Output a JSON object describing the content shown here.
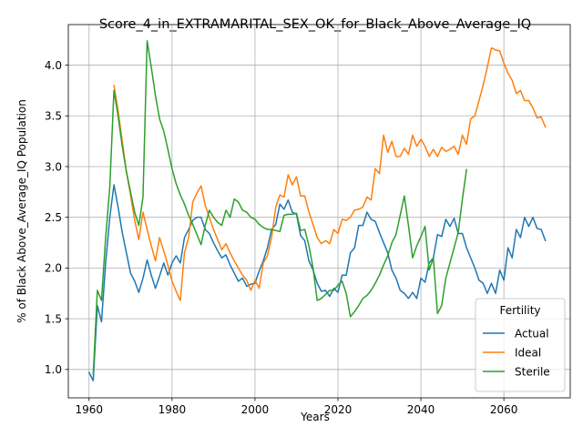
{
  "chart_data": {
    "type": "line",
    "title": "Score_4_in_EXTRAMARITAL_SEX_OK_for_Black_Above_Average_IQ",
    "xlabel": "Years",
    "ylabel": "% of Black Above_Average_IQ Population",
    "xlim": [
      1955,
      2076
    ],
    "ylim": [
      0.72,
      4.4
    ],
    "xticks": [
      1960,
      1980,
      2000,
      2020,
      2040,
      2060
    ],
    "yticks": [
      1.0,
      1.5,
      2.0,
      2.5,
      3.0,
      3.5,
      4.0
    ],
    "ytick_labels": [
      "1.0",
      "1.5",
      "2.0",
      "2.5",
      "3.0",
      "3.5",
      "4.0"
    ],
    "grid": true,
    "legend": {
      "title": "Fertility",
      "position": "lower-right"
    },
    "series": [
      {
        "name": "Actual",
        "color": "#1f77b4",
        "points": [
          [
            1960,
            0.97
          ],
          [
            1961,
            0.89
          ],
          [
            1962,
            1.63
          ],
          [
            1963,
            1.47
          ],
          [
            1964,
            2.05
          ],
          [
            1965,
            2.5
          ],
          [
            1966,
            2.82
          ],
          [
            1967,
            2.6
          ],
          [
            1968,
            2.35
          ],
          [
            1969,
            2.15
          ],
          [
            1970,
            1.95
          ],
          [
            1971,
            1.87
          ],
          [
            1972,
            1.76
          ],
          [
            1973,
            1.9
          ],
          [
            1974,
            2.08
          ],
          [
            1975,
            1.93
          ],
          [
            1976,
            1.8
          ],
          [
            1977,
            1.92
          ],
          [
            1978,
            2.05
          ],
          [
            1979,
            1.93
          ],
          [
            1980,
            2.05
          ],
          [
            1981,
            2.12
          ],
          [
            1982,
            2.05
          ],
          [
            1983,
            2.3
          ],
          [
            1984,
            2.38
          ],
          [
            1985,
            2.47
          ],
          [
            1986,
            2.5
          ],
          [
            1987,
            2.5
          ],
          [
            1988,
            2.38
          ],
          [
            1989,
            2.34
          ],
          [
            1990,
            2.25
          ],
          [
            1991,
            2.17
          ],
          [
            1992,
            2.1
          ],
          [
            1993,
            2.13
          ],
          [
            1994,
            2.03
          ],
          [
            1995,
            1.95
          ],
          [
            1996,
            1.87
          ],
          [
            1997,
            1.9
          ],
          [
            1998,
            1.82
          ],
          [
            1999,
            1.84
          ],
          [
            2000,
            1.85
          ],
          [
            2001,
            1.97
          ],
          [
            2002,
            2.07
          ],
          [
            2003,
            2.2
          ],
          [
            2004,
            2.38
          ],
          [
            2005,
            2.43
          ],
          [
            2006,
            2.63
          ],
          [
            2007,
            2.58
          ],
          [
            2008,
            2.67
          ],
          [
            2009,
            2.55
          ],
          [
            2010,
            2.53
          ],
          [
            2011,
            2.32
          ],
          [
            2012,
            2.27
          ],
          [
            2013,
            2.07
          ],
          [
            2014,
            1.98
          ],
          [
            2015,
            1.85
          ],
          [
            2016,
            1.77
          ],
          [
            2017,
            1.78
          ],
          [
            2018,
            1.72
          ],
          [
            2019,
            1.8
          ],
          [
            2020,
            1.76
          ],
          [
            2021,
            1.93
          ],
          [
            2022,
            1.93
          ],
          [
            2023,
            2.15
          ],
          [
            2024,
            2.2
          ],
          [
            2025,
            2.42
          ],
          [
            2026,
            2.42
          ],
          [
            2027,
            2.55
          ],
          [
            2028,
            2.48
          ],
          [
            2029,
            2.46
          ],
          [
            2030,
            2.35
          ],
          [
            2031,
            2.25
          ],
          [
            2032,
            2.15
          ],
          [
            2033,
            1.98
          ],
          [
            2034,
            1.9
          ],
          [
            2035,
            1.78
          ],
          [
            2036,
            1.75
          ],
          [
            2037,
            1.7
          ],
          [
            2038,
            1.76
          ],
          [
            2039,
            1.7
          ],
          [
            2040,
            1.9
          ],
          [
            2041,
            1.86
          ],
          [
            2042,
            2.05
          ],
          [
            2043,
            2.1
          ],
          [
            2044,
            2.33
          ],
          [
            2045,
            2.31
          ],
          [
            2046,
            2.48
          ],
          [
            2047,
            2.41
          ],
          [
            2048,
            2.49
          ],
          [
            2049,
            2.34
          ],
          [
            2050,
            2.34
          ],
          [
            2051,
            2.2
          ],
          [
            2052,
            2.1
          ],
          [
            2053,
            2.0
          ],
          [
            2054,
            1.88
          ],
          [
            2055,
            1.85
          ],
          [
            2056,
            1.75
          ],
          [
            2057,
            1.85
          ],
          [
            2058,
            1.75
          ],
          [
            2059,
            1.98
          ],
          [
            2060,
            1.88
          ],
          [
            2061,
            2.2
          ],
          [
            2062,
            2.1
          ],
          [
            2063,
            2.38
          ],
          [
            2064,
            2.3
          ],
          [
            2065,
            2.5
          ],
          [
            2066,
            2.41
          ],
          [
            2067,
            2.5
          ],
          [
            2068,
            2.39
          ],
          [
            2069,
            2.38
          ],
          [
            2070,
            2.27
          ]
        ]
      },
      {
        "name": "Ideal",
        "color": "#ff7f0e",
        "points": [
          [
            1966,
            3.8
          ],
          [
            1967,
            3.55
          ],
          [
            1968,
            3.25
          ],
          [
            1969,
            2.95
          ],
          [
            1970,
            2.72
          ],
          [
            1971,
            2.47
          ],
          [
            1972,
            2.28
          ],
          [
            1973,
            2.55
          ],
          [
            1974,
            2.38
          ],
          [
            1975,
            2.22
          ],
          [
            1976,
            2.07
          ],
          [
            1977,
            2.3
          ],
          [
            1978,
            2.17
          ],
          [
            1979,
            2.03
          ],
          [
            1980,
            1.87
          ],
          [
            1981,
            1.77
          ],
          [
            1982,
            1.68
          ],
          [
            1983,
            2.15
          ],
          [
            1984,
            2.3
          ],
          [
            1985,
            2.65
          ],
          [
            1986,
            2.74
          ],
          [
            1987,
            2.81
          ],
          [
            1988,
            2.62
          ],
          [
            1989,
            2.5
          ],
          [
            1990,
            2.38
          ],
          [
            1991,
            2.28
          ],
          [
            1992,
            2.18
          ],
          [
            1993,
            2.24
          ],
          [
            1994,
            2.15
          ],
          [
            1995,
            2.07
          ],
          [
            1996,
            2.0
          ],
          [
            1997,
            1.93
          ],
          [
            1998,
            1.88
          ],
          [
            1999,
            1.78
          ],
          [
            2000,
            1.88
          ],
          [
            2001,
            1.8
          ],
          [
            2002,
            2.05
          ],
          [
            2003,
            2.12
          ],
          [
            2004,
            2.3
          ],
          [
            2005,
            2.6
          ],
          [
            2006,
            2.72
          ],
          [
            2007,
            2.7
          ],
          [
            2008,
            2.92
          ],
          [
            2009,
            2.82
          ],
          [
            2010,
            2.9
          ],
          [
            2011,
            2.71
          ],
          [
            2012,
            2.71
          ],
          [
            2013,
            2.55
          ],
          [
            2014,
            2.43
          ],
          [
            2015,
            2.3
          ],
          [
            2016,
            2.24
          ],
          [
            2017,
            2.27
          ],
          [
            2018,
            2.24
          ],
          [
            2019,
            2.38
          ],
          [
            2020,
            2.34
          ],
          [
            2021,
            2.48
          ],
          [
            2022,
            2.47
          ],
          [
            2023,
            2.5
          ],
          [
            2024,
            2.57
          ],
          [
            2025,
            2.58
          ],
          [
            2026,
            2.6
          ],
          [
            2027,
            2.7
          ],
          [
            2028,
            2.67
          ],
          [
            2029,
            2.98
          ],
          [
            2030,
            2.93
          ],
          [
            2031,
            3.31
          ],
          [
            2032,
            3.14
          ],
          [
            2033,
            3.25
          ],
          [
            2034,
            3.1
          ],
          [
            2035,
            3.1
          ],
          [
            2036,
            3.18
          ],
          [
            2037,
            3.12
          ],
          [
            2038,
            3.31
          ],
          [
            2039,
            3.2
          ],
          [
            2040,
            3.27
          ],
          [
            2041,
            3.2
          ],
          [
            2042,
            3.1
          ],
          [
            2043,
            3.17
          ],
          [
            2044,
            3.1
          ],
          [
            2045,
            3.19
          ],
          [
            2046,
            3.15
          ],
          [
            2047,
            3.17
          ],
          [
            2048,
            3.2
          ],
          [
            2049,
            3.12
          ],
          [
            2050,
            3.31
          ],
          [
            2051,
            3.22
          ],
          [
            2052,
            3.47
          ],
          [
            2053,
            3.5
          ],
          [
            2054,
            3.65
          ],
          [
            2055,
            3.8
          ],
          [
            2056,
            3.98
          ],
          [
            2057,
            4.17
          ],
          [
            2058,
            4.15
          ],
          [
            2059,
            4.14
          ],
          [
            2060,
            4.02
          ],
          [
            2061,
            3.92
          ],
          [
            2062,
            3.85
          ],
          [
            2063,
            3.72
          ],
          [
            2064,
            3.75
          ],
          [
            2065,
            3.65
          ],
          [
            2066,
            3.65
          ],
          [
            2067,
            3.58
          ],
          [
            2068,
            3.48
          ],
          [
            2069,
            3.49
          ],
          [
            2070,
            3.39
          ]
        ]
      },
      {
        "name": "Sterile",
        "color": "#2ca02c",
        "points": [
          [
            1961,
            0.95
          ],
          [
            1962,
            1.78
          ],
          [
            1963,
            1.68
          ],
          [
            1964,
            2.3
          ],
          [
            1965,
            2.8
          ],
          [
            1966,
            3.75
          ],
          [
            1967,
            3.5
          ],
          [
            1968,
            3.2
          ],
          [
            1969,
            2.95
          ],
          [
            1970,
            2.75
          ],
          [
            1971,
            2.55
          ],
          [
            1972,
            2.42
          ],
          [
            1973,
            2.7
          ],
          [
            1974,
            4.24
          ],
          [
            1975,
            3.98
          ],
          [
            1976,
            3.7
          ],
          [
            1977,
            3.47
          ],
          [
            1978,
            3.35
          ],
          [
            1979,
            3.17
          ],
          [
            1980,
            2.98
          ],
          [
            1981,
            2.83
          ],
          [
            1982,
            2.72
          ],
          [
            1983,
            2.63
          ],
          [
            1984,
            2.52
          ],
          [
            1985,
            2.43
          ],
          [
            1986,
            2.33
          ],
          [
            1987,
            2.23
          ],
          [
            1988,
            2.42
          ],
          [
            1989,
            2.57
          ],
          [
            1990,
            2.5
          ],
          [
            1991,
            2.45
          ],
          [
            1992,
            2.42
          ],
          [
            1993,
            2.57
          ],
          [
            1994,
            2.5
          ],
          [
            1995,
            2.68
          ],
          [
            1996,
            2.65
          ],
          [
            1997,
            2.57
          ],
          [
            1998,
            2.55
          ],
          [
            1999,
            2.5
          ],
          [
            2000,
            2.48
          ],
          [
            2001,
            2.43
          ],
          [
            2002,
            2.4
          ],
          [
            2003,
            2.38
          ],
          [
            2004,
            2.38
          ],
          [
            2005,
            2.37
          ],
          [
            2006,
            2.36
          ],
          [
            2007,
            2.52
          ],
          [
            2008,
            2.53
          ],
          [
            2009,
            2.53
          ],
          [
            2010,
            2.54
          ],
          [
            2011,
            2.37
          ],
          [
            2012,
            2.38
          ],
          [
            2013,
            2.22
          ],
          [
            2014,
            2.0
          ],
          [
            2015,
            1.68
          ],
          [
            2016,
            1.7
          ],
          [
            2017,
            1.74
          ],
          [
            2018,
            1.78
          ],
          [
            2019,
            1.78
          ],
          [
            2020,
            1.83
          ],
          [
            2021,
            1.87
          ],
          [
            2022,
            1.75
          ],
          [
            2023,
            1.52
          ],
          [
            2024,
            1.57
          ],
          [
            2025,
            1.63
          ],
          [
            2026,
            1.7
          ],
          [
            2027,
            1.73
          ],
          [
            2028,
            1.78
          ],
          [
            2029,
            1.85
          ],
          [
            2030,
            1.93
          ],
          [
            2031,
            2.03
          ],
          [
            2032,
            2.12
          ],
          [
            2033,
            2.25
          ],
          [
            2034,
            2.33
          ],
          [
            2035,
            2.52
          ],
          [
            2036,
            2.71
          ],
          [
            2037,
            2.42
          ],
          [
            2038,
            2.1
          ],
          [
            2039,
            2.22
          ],
          [
            2040,
            2.31
          ],
          [
            2041,
            2.41
          ],
          [
            2042,
            1.98
          ],
          [
            2043,
            2.1
          ],
          [
            2044,
            1.55
          ],
          [
            2045,
            1.63
          ],
          [
            2046,
            1.9
          ],
          [
            2047,
            2.05
          ],
          [
            2048,
            2.2
          ],
          [
            2049,
            2.35
          ],
          [
            2050,
            2.68
          ],
          [
            2051,
            2.97
          ]
        ]
      }
    ]
  }
}
